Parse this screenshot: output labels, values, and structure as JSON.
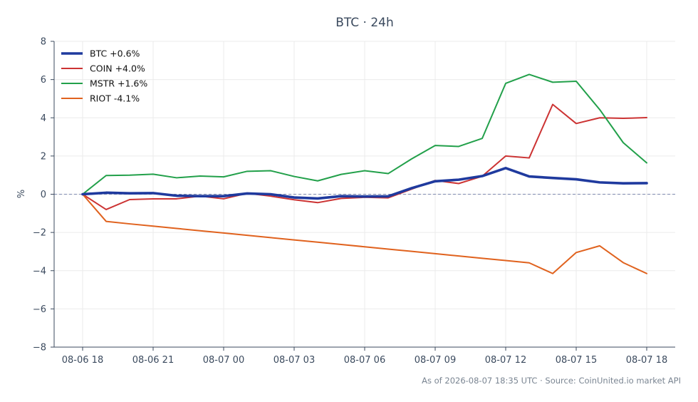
{
  "chart_data": {
    "type": "line",
    "title": "BTC · 24h",
    "xlabel": "",
    "ylabel": "%",
    "ylim": [
      -8,
      8
    ],
    "yticks": [
      -8,
      -6,
      -4,
      -2,
      0,
      2,
      4,
      6,
      8
    ],
    "x_ticks": [
      "08-06 18",
      "08-06 21",
      "08-07 00",
      "08-07 03",
      "08-07 06",
      "08-07 09",
      "08-07 12",
      "08-07 15",
      "08-07 18"
    ],
    "x_hours": [
      0,
      1,
      2,
      3,
      4,
      5,
      6,
      7,
      8,
      9,
      10,
      11,
      12,
      13,
      14,
      15,
      16,
      17,
      18,
      19,
      20,
      21,
      22,
      23,
      24
    ],
    "grid": true,
    "zero_line": true,
    "legend_position": "top-left",
    "series": [
      {
        "name": "BTC +0.6%",
        "color": "#1f3a9e",
        "bold": true,
        "values": [
          0.0,
          0.08,
          0.05,
          0.06,
          -0.08,
          -0.1,
          -0.1,
          0.04,
          0.0,
          -0.17,
          -0.22,
          -0.1,
          -0.12,
          -0.11,
          0.32,
          0.68,
          0.76,
          0.95,
          1.37,
          0.93,
          0.85,
          0.78,
          0.62,
          0.57,
          0.58
        ]
      },
      {
        "name": "COIN +4.0%",
        "color": "#cc3333",
        "bold": false,
        "values": [
          0.0,
          -0.8,
          -0.28,
          -0.24,
          -0.24,
          -0.1,
          -0.24,
          0.05,
          -0.1,
          -0.29,
          -0.44,
          -0.22,
          -0.16,
          -0.19,
          0.27,
          0.72,
          0.56,
          0.94,
          2.0,
          1.9,
          4.7,
          3.7,
          4.0,
          3.97,
          4.01
        ]
      },
      {
        "name": "MSTR +1.6%",
        "color": "#22a04a",
        "bold": false,
        "values": [
          0.0,
          0.98,
          1.0,
          1.05,
          0.86,
          0.95,
          0.91,
          1.2,
          1.23,
          0.93,
          0.7,
          1.04,
          1.23,
          1.08,
          1.85,
          2.55,
          2.5,
          2.92,
          5.8,
          6.27,
          5.86,
          5.91,
          4.43,
          2.7,
          1.64
        ]
      },
      {
        "name": "RIOT -4.1%",
        "color": "#e0621e",
        "bold": false,
        "values": [
          0.0,
          -1.42,
          -1.55,
          -1.67,
          -1.79,
          -1.91,
          -2.03,
          -2.15,
          -2.27,
          -2.39,
          -2.51,
          -2.63,
          -2.75,
          -2.87,
          -2.99,
          -3.11,
          -3.23,
          -3.35,
          -3.47,
          -3.59,
          -4.15,
          -3.05,
          -2.7,
          -3.58,
          -4.15
        ]
      }
    ],
    "footnote": "As of 2026-08-07 18:35 UTC · Source: CoinUnited.io market API"
  }
}
